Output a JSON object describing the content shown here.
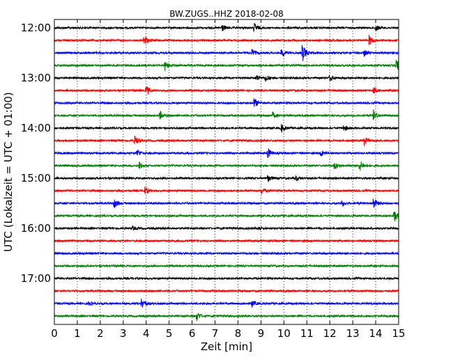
{
  "chart_data": {
    "type": "line",
    "title": "BW.ZUGS..HHZ 2018-02-08",
    "xlabel": "Zeit  [min]",
    "ylabel": "UTC (Lokalzeit = UTC + 01:00)",
    "xlim": [
      0,
      15
    ],
    "x_ticks": [
      "0",
      "1",
      "2",
      "3",
      "4",
      "5",
      "6",
      "7",
      "8",
      "9",
      "10",
      "11",
      "12",
      "13",
      "14",
      "15"
    ],
    "y_tick_labels": [
      "12:00",
      "13:00",
      "14:00",
      "15:00",
      "16:00",
      "17:00"
    ],
    "y_tick_trace_index": [
      0,
      4,
      8,
      12,
      16,
      20
    ],
    "grid": "vertical dotted",
    "trace_colors": [
      "#000000",
      "#ff0000",
      "#0000ff",
      "#008000"
    ],
    "traces": [
      {
        "start": "12:00",
        "color": "#000000",
        "events": [
          {
            "t": 7.3,
            "a": 0.35
          },
          {
            "t": 8.7,
            "a": 0.45
          },
          {
            "t": 14.0,
            "a": 0.3
          }
        ]
      },
      {
        "start": "12:15",
        "color": "#ff0000",
        "events": [
          {
            "t": 3.9,
            "a": 0.55
          },
          {
            "t": 13.7,
            "a": 0.5
          }
        ]
      },
      {
        "start": "12:30",
        "color": "#0000ff",
        "events": [
          {
            "t": 8.6,
            "a": 0.35
          },
          {
            "t": 9.9,
            "a": 0.45
          },
          {
            "t": 10.8,
            "a": 0.9
          },
          {
            "t": 13.5,
            "a": 0.3
          }
        ]
      },
      {
        "start": "12:45",
        "color": "#008000",
        "events": [
          {
            "t": 4.8,
            "a": 0.5
          },
          {
            "t": 14.9,
            "a": 0.6
          }
        ]
      },
      {
        "start": "13:00",
        "color": "#000000",
        "events": [
          {
            "t": 8.8,
            "a": 0.3
          },
          {
            "t": 9.2,
            "a": 0.35
          },
          {
            "t": 12.0,
            "a": 0.3
          }
        ]
      },
      {
        "start": "13:15",
        "color": "#ff0000",
        "events": [
          {
            "t": 4.0,
            "a": 0.5
          },
          {
            "t": 13.9,
            "a": 0.3
          }
        ]
      },
      {
        "start": "13:30",
        "color": "#0000ff",
        "events": [
          {
            "t": 8.7,
            "a": 0.5
          }
        ]
      },
      {
        "start": "13:45",
        "color": "#008000",
        "events": [
          {
            "t": 4.6,
            "a": 0.4
          },
          {
            "t": 9.5,
            "a": 0.3
          },
          {
            "t": 13.9,
            "a": 0.45
          }
        ]
      },
      {
        "start": "14:00",
        "color": "#000000",
        "events": [
          {
            "t": 9.9,
            "a": 0.4
          },
          {
            "t": 12.6,
            "a": 0.3
          }
        ]
      },
      {
        "start": "14:15",
        "color": "#ff0000",
        "events": [
          {
            "t": 3.5,
            "a": 0.45
          },
          {
            "t": 13.5,
            "a": 0.4
          }
        ]
      },
      {
        "start": "14:30",
        "color": "#0000ff",
        "events": [
          {
            "t": 3.6,
            "a": 0.35
          },
          {
            "t": 9.3,
            "a": 0.5
          },
          {
            "t": 11.6,
            "a": 0.3
          }
        ]
      },
      {
        "start": "14:45",
        "color": "#008000",
        "events": [
          {
            "t": 3.7,
            "a": 0.35
          },
          {
            "t": 12.2,
            "a": 0.35
          },
          {
            "t": 13.3,
            "a": 0.55
          }
        ]
      },
      {
        "start": "15:00",
        "color": "#000000",
        "events": [
          {
            "t": 9.3,
            "a": 0.4
          },
          {
            "t": 10.5,
            "a": 0.3
          }
        ]
      },
      {
        "start": "15:15",
        "color": "#ff0000",
        "events": [
          {
            "t": 3.9,
            "a": 0.45
          },
          {
            "t": 9.0,
            "a": 0.3
          }
        ]
      },
      {
        "start": "15:30",
        "color": "#0000ff",
        "events": [
          {
            "t": 2.6,
            "a": 0.45
          },
          {
            "t": 12.5,
            "a": 0.35
          },
          {
            "t": 13.9,
            "a": 0.55
          }
        ]
      },
      {
        "start": "15:45",
        "color": "#008000",
        "events": [
          {
            "t": 14.8,
            "a": 0.6
          }
        ]
      },
      {
        "start": "16:00",
        "color": "#000000",
        "events": [
          {
            "t": 3.4,
            "a": 0.2
          },
          {
            "t": 8.9,
            "a": 0.2
          }
        ]
      },
      {
        "start": "16:15",
        "color": "#ff0000",
        "events": []
      },
      {
        "start": "16:30",
        "color": "#0000ff",
        "events": []
      },
      {
        "start": "16:45",
        "color": "#008000",
        "events": []
      },
      {
        "start": "17:00",
        "color": "#000000",
        "events": []
      },
      {
        "start": "17:15",
        "color": "#ff0000",
        "events": []
      },
      {
        "start": "17:30",
        "color": "#0000ff",
        "events": [
          {
            "t": 1.5,
            "a": 0.2
          },
          {
            "t": 3.8,
            "a": 0.55
          },
          {
            "t": 8.6,
            "a": 0.35
          }
        ]
      },
      {
        "start": "17:45",
        "color": "#008000",
        "events": [
          {
            "t": 6.2,
            "a": 0.45
          }
        ]
      }
    ]
  }
}
